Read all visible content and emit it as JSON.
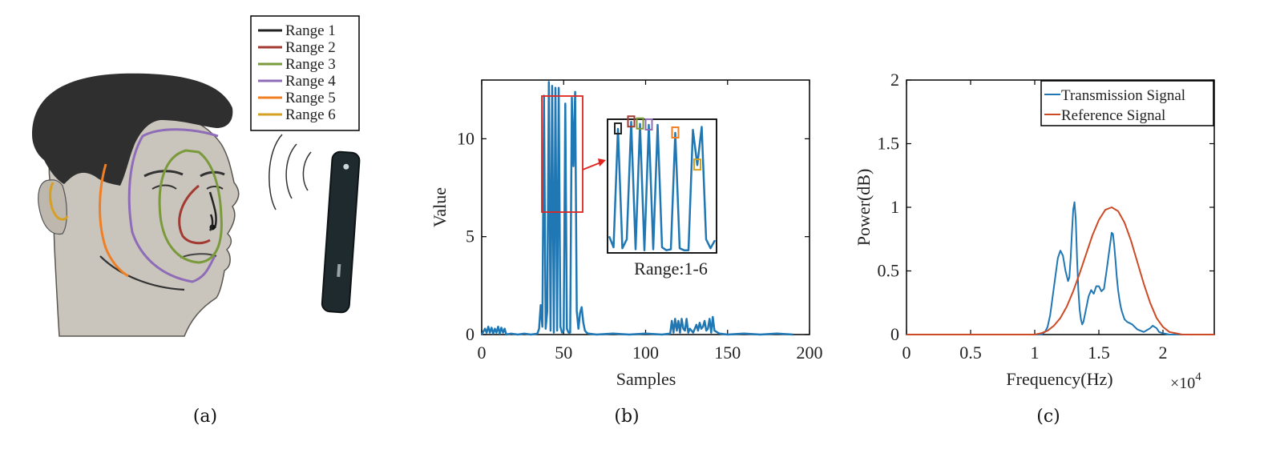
{
  "panel_a": {
    "caption": "(a)",
    "legend": [
      {
        "label": "Range 1",
        "color": "#222222"
      },
      {
        "label": "Range 2",
        "color": "#a33a32"
      },
      {
        "label": "Range 3",
        "color": "#7a9a3c"
      },
      {
        "label": "Range 4",
        "color": "#8e6cb8"
      },
      {
        "label": "Range 5",
        "color": "#f07f23"
      },
      {
        "label": "Range 6",
        "color": "#d6a022"
      }
    ]
  },
  "panel_b": {
    "caption": "(b)",
    "inset_label": "Range:1-6"
  },
  "panel_c": {
    "caption": "(c)",
    "x_multiplier": "×10",
    "x_multiplier_exp": "4"
  },
  "chart_data": [
    {
      "type": "line",
      "xlabel": "Samples",
      "ylabel": "Value",
      "xlim": [
        0,
        200
      ],
      "ylim": [
        0,
        13
      ],
      "xticks": [
        0,
        50,
        100,
        150,
        200
      ],
      "yticks": [
        0,
        5,
        10
      ],
      "grid": false,
      "color": "#1f77b4",
      "series": [
        {
          "x": [
            0,
            2,
            3,
            4,
            5,
            6,
            7,
            8,
            9,
            10,
            11,
            12,
            13,
            14,
            15,
            18,
            22,
            26,
            30,
            34,
            35,
            36,
            37,
            38,
            39,
            40,
            41,
            42,
            43,
            44,
            45,
            46,
            47,
            48,
            49,
            50,
            51,
            52,
            53,
            54,
            55,
            56,
            57,
            58,
            59,
            60,
            61,
            62,
            63,
            64,
            65,
            70,
            80,
            90,
            100,
            110,
            115,
            116,
            117,
            118,
            119,
            120,
            121,
            122,
            123,
            124,
            125,
            126,
            127,
            128,
            129,
            130,
            131,
            132,
            133,
            134,
            135,
            136,
            137,
            138,
            139,
            140,
            141,
            142,
            145,
            150,
            160,
            170,
            180,
            190
          ],
          "y": [
            0,
            0.3,
            0.1,
            0.4,
            0.1,
            0.35,
            0.05,
            0.3,
            0.1,
            0.4,
            0.05,
            0.35,
            0.1,
            0.3,
            0,
            0.05,
            0,
            0.05,
            0,
            0.05,
            0.3,
            1.5,
            0.4,
            12.2,
            0.3,
            1.2,
            12.9,
            0.2,
            12.7,
            0.1,
            12.6,
            0.2,
            12.6,
            0.4,
            0.1,
            0.2,
            11.8,
            0.3,
            0.1,
            0.1,
            12.1,
            8.6,
            12.4,
            1.2,
            0.3,
            1.1,
            1.4,
            0.6,
            0.2,
            0.1,
            0.05,
            0,
            0.05,
            0,
            0.05,
            0,
            0.05,
            0.7,
            0.1,
            0.8,
            0.2,
            0.7,
            0.1,
            0.8,
            0.3,
            0.2,
            0.8,
            0.1,
            0.3,
            0.2,
            0.1,
            0.3,
            0.5,
            0.2,
            0.6,
            0.3,
            0.4,
            0.7,
            0.2,
            0.3,
            0.8,
            0.1,
            0.9,
            0.2,
            0.05,
            0,
            0.05,
            0,
            0.05,
            0
          ]
        }
      ],
      "inset_markers": [
        {
          "range": "Range 1",
          "color": "#222222"
        },
        {
          "range": "Range 2",
          "color": "#a33a32"
        },
        {
          "range": "Range 3",
          "color": "#7a9a3c"
        },
        {
          "range": "Range 4",
          "color": "#8e6cb8"
        },
        {
          "range": "Range 5",
          "color": "#f07f23"
        },
        {
          "range": "Range 6",
          "color": "#d6a022"
        }
      ]
    },
    {
      "type": "line",
      "xlabel": "Frequency(Hz)",
      "ylabel": "Power(dB)",
      "xlim": [
        0,
        2.4
      ],
      "ylim": [
        0,
        2
      ],
      "xticks": [
        0,
        0.5,
        1,
        1.5,
        2
      ],
      "xtick_labels": [
        "0",
        "0.5",
        "1",
        "1.5",
        "2"
      ],
      "yticks": [
        0,
        0.5,
        1,
        1.5,
        2
      ],
      "ytick_labels": [
        "0",
        "0.5",
        "1",
        "1.5",
        "2"
      ],
      "grid": false,
      "legend": "top-right",
      "series": [
        {
          "name": "Transmission Signal",
          "color": "#1f77b4",
          "x": [
            0,
            0.5,
            1.0,
            1.05,
            1.08,
            1.1,
            1.12,
            1.14,
            1.16,
            1.18,
            1.2,
            1.22,
            1.24,
            1.26,
            1.27,
            1.28,
            1.29,
            1.3,
            1.31,
            1.32,
            1.33,
            1.34,
            1.35,
            1.36,
            1.37,
            1.38,
            1.4,
            1.42,
            1.44,
            1.46,
            1.48,
            1.5,
            1.52,
            1.54,
            1.56,
            1.58,
            1.6,
            1.61,
            1.62,
            1.63,
            1.64,
            1.65,
            1.66,
            1.67,
            1.68,
            1.7,
            1.72,
            1.74,
            1.76,
            1.8,
            1.85,
            1.9,
            1.92,
            1.95,
            1.97,
            2.0,
            2.05,
            2.1,
            2.4
          ],
          "y": [
            0,
            0,
            0,
            0,
            0.02,
            0.06,
            0.15,
            0.3,
            0.45,
            0.6,
            0.66,
            0.62,
            0.5,
            0.42,
            0.45,
            0.6,
            0.8,
            0.98,
            1.04,
            0.9,
            0.6,
            0.35,
            0.2,
            0.12,
            0.08,
            0.1,
            0.2,
            0.3,
            0.35,
            0.32,
            0.38,
            0.38,
            0.34,
            0.36,
            0.5,
            0.65,
            0.8,
            0.79,
            0.7,
            0.58,
            0.45,
            0.35,
            0.28,
            0.22,
            0.18,
            0.12,
            0.1,
            0.09,
            0.08,
            0.04,
            0.02,
            0.05,
            0.07,
            0.05,
            0.02,
            0.01,
            0,
            0,
            0
          ]
        },
        {
          "name": "Reference Signal",
          "color": "#cc4b25",
          "x": [
            0,
            0.5,
            1.0,
            1.05,
            1.1,
            1.15,
            1.2,
            1.25,
            1.3,
            1.35,
            1.4,
            1.45,
            1.5,
            1.55,
            1.6,
            1.65,
            1.7,
            1.75,
            1.8,
            1.85,
            1.9,
            1.95,
            2.0,
            2.05,
            2.1,
            2.15,
            2.4
          ],
          "y": [
            0,
            0,
            0,
            0.01,
            0.03,
            0.07,
            0.13,
            0.22,
            0.34,
            0.48,
            0.63,
            0.78,
            0.9,
            0.98,
            1.0,
            0.97,
            0.88,
            0.74,
            0.57,
            0.4,
            0.25,
            0.13,
            0.06,
            0.02,
            0.01,
            0,
            0
          ]
        }
      ]
    }
  ]
}
